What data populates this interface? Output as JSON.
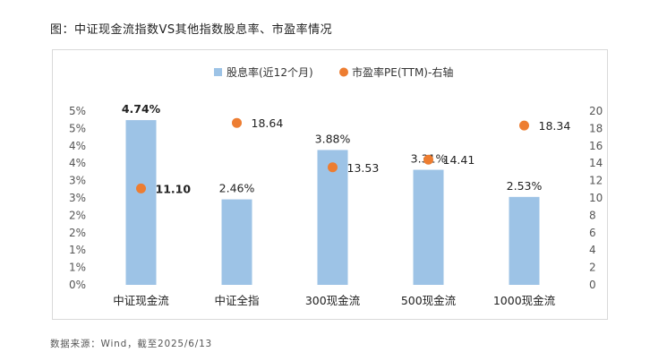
{
  "caption": "图：中证现金流指数VS其他指数股息率、市盈率情况",
  "source_note": "数据来源：Wind，截至2025/6/13",
  "chart_data": {
    "type": "bar",
    "categories": [
      "中证现金流",
      "中证全指",
      "300现金流",
      "500现金流",
      "1000现金流"
    ],
    "series": [
      {
        "name": "股息率(近12个月)",
        "type": "bar",
        "axis": "left",
        "values": [
          4.74,
          2.46,
          3.88,
          3.31,
          2.53
        ],
        "labels": [
          "4.74%",
          "2.46%",
          "3.88%",
          "3.31%",
          "2.53%"
        ],
        "color": "#9dc3e6"
      },
      {
        "name": "市盈率PE(TTM)-右轴",
        "type": "scatter",
        "axis": "right",
        "values": [
          11.1,
          18.64,
          13.53,
          14.41,
          18.34
        ],
        "labels": [
          "11.10",
          "18.64",
          "13.53",
          "14.41",
          "18.34"
        ],
        "color": "#ed7d31"
      }
    ],
    "y_left": {
      "ylim": [
        0,
        5
      ],
      "ticks": [
        "0%",
        "1%",
        "1%",
        "2%",
        "2%",
        "3%",
        "3%",
        "4%",
        "4%",
        "5%",
        "5%"
      ]
    },
    "y_right": {
      "ylim": [
        0,
        20
      ],
      "ticks": [
        "0",
        "2",
        "4",
        "6",
        "8",
        "10",
        "12",
        "14",
        "16",
        "18",
        "20"
      ]
    },
    "legend": "top",
    "grid": false
  }
}
